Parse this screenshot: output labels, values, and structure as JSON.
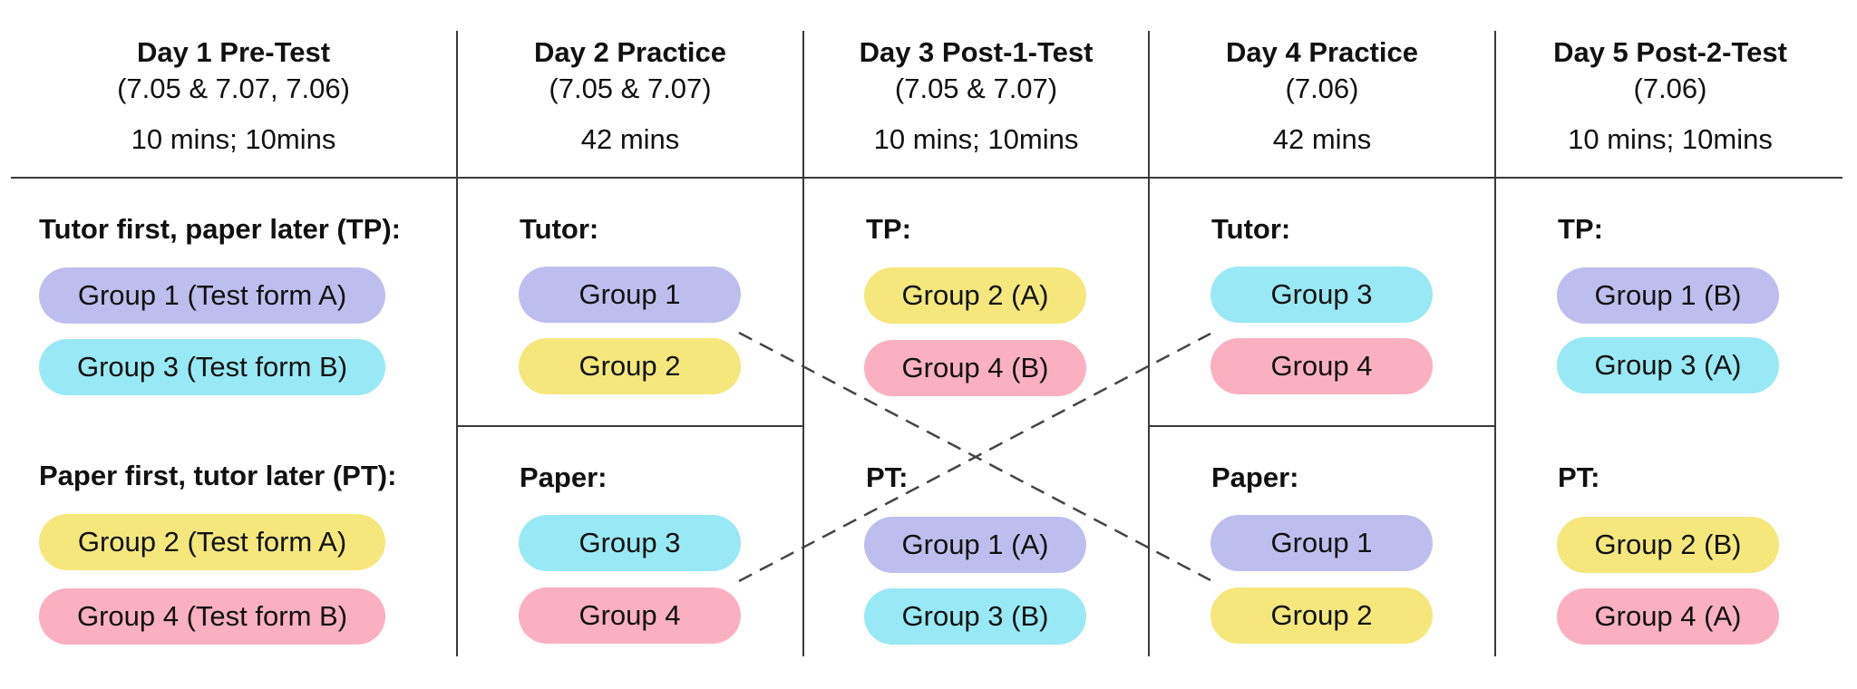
{
  "days": [
    {
      "title": "Day 1 Pre-Test",
      "subtitle": "(7.05 & 7.07, 7.06)",
      "duration": "10 mins; 10mins"
    },
    {
      "title": "Day 2 Practice",
      "subtitle": "(7.05 & 7.07)",
      "duration": "42 mins"
    },
    {
      "title": "Day 3 Post-1-Test",
      "subtitle": "(7.05 & 7.07)",
      "duration": "10 mins; 10mins"
    },
    {
      "title": "Day 4 Practice",
      "subtitle": "(7.06)",
      "duration": "42 mins"
    },
    {
      "title": "Day 5 Post-2-Test",
      "subtitle": "(7.06)",
      "duration": "10 mins; 10mins"
    }
  ],
  "day1": {
    "tp_label": "Tutor first, paper later (TP):",
    "tp_groups": [
      {
        "label": "Group 1 (Test form A)",
        "color": "#bebeee"
      },
      {
        "label": "Group 3 (Test form B)",
        "color": "#98e9f5"
      }
    ],
    "pt_label": "Paper first, tutor later (PT):",
    "pt_groups": [
      {
        "label": "Group 2 (Test form A)",
        "color": "#f5e77c"
      },
      {
        "label": "Group 4 (Test form B)",
        "color": "#fbb0c2"
      }
    ]
  },
  "day2": {
    "tutor_label": "Tutor:",
    "tutor_groups": [
      {
        "label": "Group 1",
        "color": "#bebeee"
      },
      {
        "label": "Group 2",
        "color": "#f5e77c"
      }
    ],
    "paper_label": "Paper:",
    "paper_groups": [
      {
        "label": "Group 3",
        "color": "#98e9f5"
      },
      {
        "label": "Group 4",
        "color": "#fbb0c2"
      }
    ]
  },
  "day3": {
    "tp_label": "TP:",
    "tp_groups": [
      {
        "label": "Group 2 (A)",
        "color": "#f5e77c"
      },
      {
        "label": "Group 4 (B)",
        "color": "#fbb0c2"
      }
    ],
    "pt_label": "PT:",
    "pt_groups": [
      {
        "label": "Group 1 (A)",
        "color": "#bebeee"
      },
      {
        "label": "Group 3 (B)",
        "color": "#98e9f5"
      }
    ]
  },
  "day4": {
    "tutor_label": "Tutor:",
    "tutor_groups": [
      {
        "label": "Group 3",
        "color": "#98e9f5"
      },
      {
        "label": "Group 4",
        "color": "#fbb0c2"
      }
    ],
    "paper_label": "Paper:",
    "paper_groups": [
      {
        "label": "Group 1",
        "color": "#bebeee"
      },
      {
        "label": "Group 2",
        "color": "#f5e77c"
      }
    ]
  },
  "day5": {
    "tp_label": "TP:",
    "tp_groups": [
      {
        "label": "Group 1 (B)",
        "color": "#bebeee"
      },
      {
        "label": "Group 3 (A)",
        "color": "#98e9f5"
      }
    ],
    "pt_label": "PT:",
    "pt_groups": [
      {
        "label": "Group 2 (B)",
        "color": "#f5e77c"
      },
      {
        "label": "Group 4 (A)",
        "color": "#fbb0c2"
      }
    ]
  }
}
